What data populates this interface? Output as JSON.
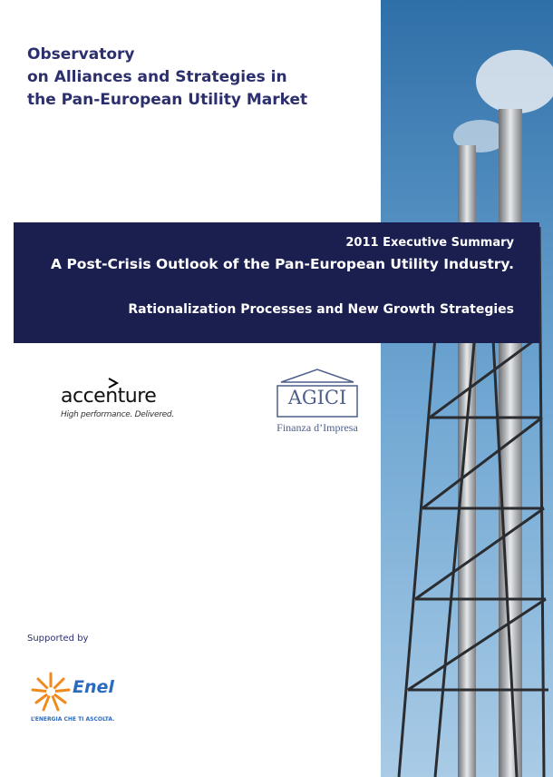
{
  "header": {
    "title_lines": [
      "Observatory",
      "on Alliances and Strategies in",
      "the Pan-European Utility Market"
    ]
  },
  "banner": {
    "edition": "2011 Executive Summary",
    "title": "A Post-Crisis Outlook of the Pan-European Utility Industry.",
    "subtitle": "Rationalization Processes and New Growth Strategies"
  },
  "logos": {
    "accenture": {
      "name": "accenture",
      "tagline": "High performance. Delivered."
    },
    "agici": {
      "name": "AGICI",
      "tagline": "Finanza d’Impresa"
    }
  },
  "support": {
    "label": "Supported by",
    "enel": {
      "name": "Enel",
      "tagline": "L’ENERGIA CHE TI ASCOLTA."
    }
  }
}
